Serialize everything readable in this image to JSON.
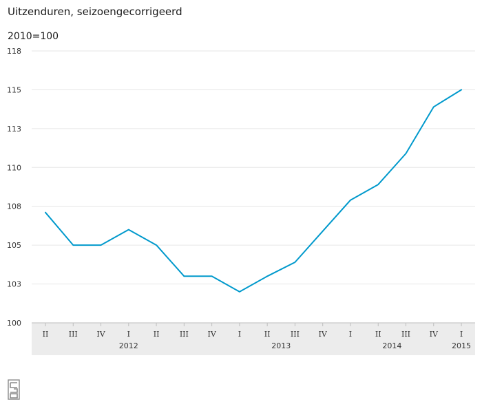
{
  "chart_data": {
    "type": "line",
    "title": "Uitzenduren, seizoengecorrigeerd",
    "subtitle": "2010=100",
    "xlabel": "",
    "ylabel": "",
    "categories": [
      "II",
      "III",
      "IV",
      "I",
      "II",
      "III",
      "IV",
      "I",
      "II",
      "III",
      "IV",
      "I",
      "II",
      "III",
      "IV",
      "I"
    ],
    "year_labels": [
      {
        "label": "2012",
        "quarter_index": 3
      },
      {
        "label": "2013",
        "quarter_index": 8.5
      },
      {
        "label": "2014",
        "quarter_index": 12.5
      },
      {
        "label": "2015",
        "quarter_index": 15
      }
    ],
    "ylim": [
      100,
      117.5
    ],
    "yticks": [
      {
        "value": 100,
        "label": "100"
      },
      {
        "value": 102.5,
        "label": "103"
      },
      {
        "value": 105,
        "label": "105"
      },
      {
        "value": 107.5,
        "label": "108"
      },
      {
        "value": 110,
        "label": "110"
      },
      {
        "value": 112.5,
        "label": "113"
      },
      {
        "value": 115,
        "label": "115"
      },
      {
        "value": 117.5,
        "label": "118"
      }
    ],
    "grid": true,
    "series": [
      {
        "values": [
          107.1,
          105.0,
          105.0,
          106.0,
          105.0,
          103.0,
          103.0,
          102.0,
          103.0,
          103.9,
          105.9,
          107.9,
          108.9,
          110.9,
          113.9,
          115.0
        ]
      }
    ],
    "colors": {
      "line": "#0099cc",
      "grid": "#e6e6e6",
      "axis_band": "#ececec"
    }
  }
}
